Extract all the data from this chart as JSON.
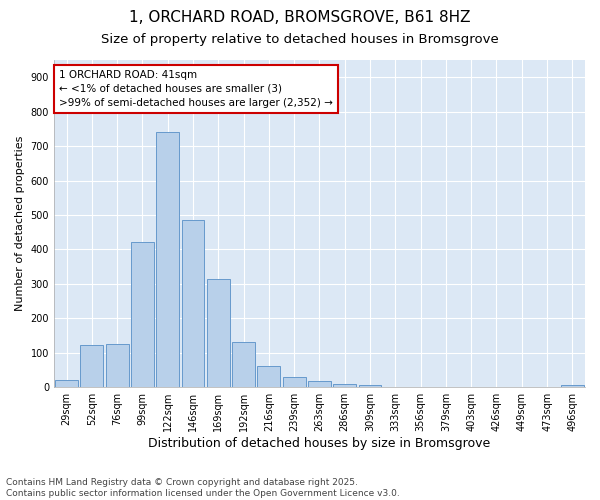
{
  "title1": "1, ORCHARD ROAD, BROMSGROVE, B61 8HZ",
  "title2": "Size of property relative to detached houses in Bromsgrove",
  "xlabel": "Distribution of detached houses by size in Bromsgrove",
  "ylabel": "Number of detached properties",
  "categories": [
    "29sqm",
    "52sqm",
    "76sqm",
    "99sqm",
    "122sqm",
    "146sqm",
    "169sqm",
    "192sqm",
    "216sqm",
    "239sqm",
    "263sqm",
    "286sqm",
    "309sqm",
    "333sqm",
    "356sqm",
    "379sqm",
    "403sqm",
    "426sqm",
    "449sqm",
    "473sqm",
    "496sqm"
  ],
  "values": [
    20,
    122,
    125,
    422,
    742,
    485,
    315,
    130,
    63,
    30,
    18,
    8,
    5,
    0,
    0,
    0,
    0,
    0,
    0,
    0,
    7
  ],
  "bar_color": "#b8d0ea",
  "bar_edge_color": "#6699cc",
  "annotation_line1": "1 ORCHARD ROAD: 41sqm",
  "annotation_line2": "← <1% of detached houses are smaller (3)",
  "annotation_line3": ">99% of semi-detached houses are larger (2,352) →",
  "annotation_box_facecolor": "#ffffff",
  "annotation_box_edgecolor": "#cc0000",
  "footnote": "Contains HM Land Registry data © Crown copyright and database right 2025.\nContains public sector information licensed under the Open Government Licence v3.0.",
  "ylim": [
    0,
    950
  ],
  "yticks": [
    0,
    100,
    200,
    300,
    400,
    500,
    600,
    700,
    800,
    900
  ],
  "fig_bg_color": "#ffffff",
  "plot_bg_color": "#dce8f5",
  "grid_color": "#ffffff",
  "title_fontsize": 11,
  "subtitle_fontsize": 9.5,
  "tick_fontsize": 7,
  "xlabel_fontsize": 9,
  "ylabel_fontsize": 8,
  "footnote_fontsize": 6.5,
  "annotation_fontsize": 7.5
}
